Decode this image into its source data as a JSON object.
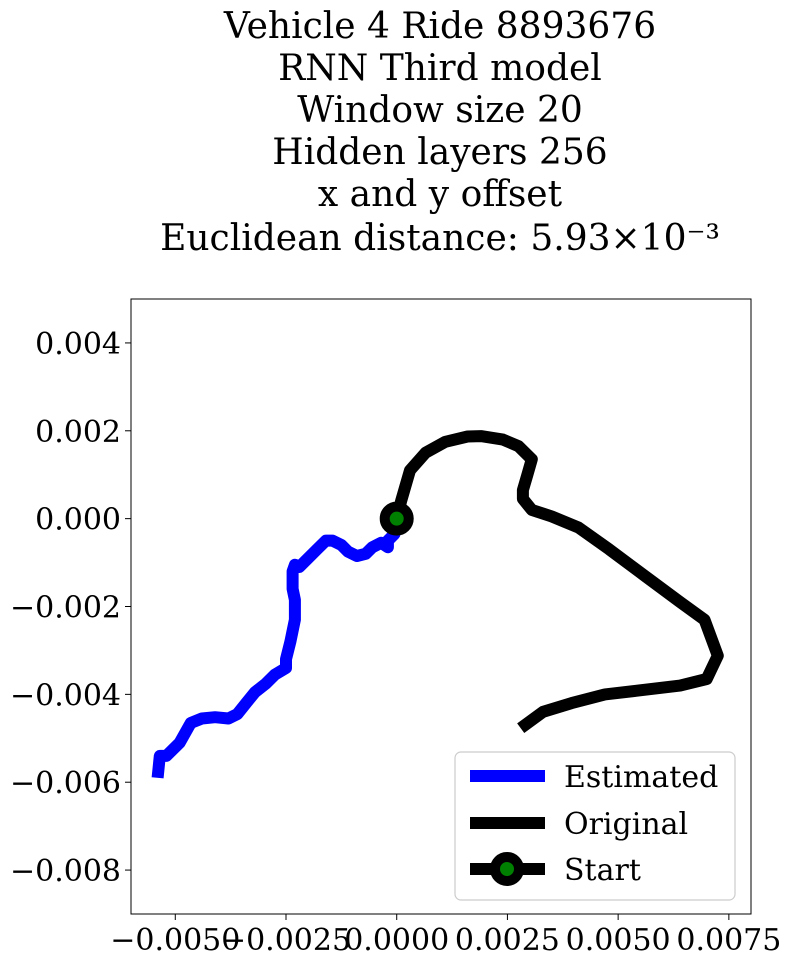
{
  "chart_data": {
    "type": "line",
    "title_lines": [
      "Vehicle 4 Ride 8893676",
      "RNN Third model",
      "Window size 20",
      "Hidden layers 256",
      "x and y offset",
      "Euclidean distance: 5.93×10⁻³"
    ],
    "xlim": [
      -0.006,
      0.008
    ],
    "ylim": [
      -0.009,
      0.005
    ],
    "xticks": [
      -0.005,
      -0.0025,
      0.0,
      0.0025,
      0.005,
      0.0075
    ],
    "xtick_labels": [
      "−0.0050",
      "−0.0025",
      "0.0000",
      "0.0025",
      "0.0050",
      "0.0075"
    ],
    "yticks": [
      0.004,
      0.002,
      0.0,
      -0.002,
      -0.004,
      -0.006,
      -0.008
    ],
    "ytick_labels": [
      "0.004",
      "0.002",
      "0.000",
      "−0.002",
      "−0.004",
      "−0.006",
      "−0.008"
    ],
    "grid": false,
    "legend_position": "bottom-right",
    "series": [
      {
        "name": "Estimated",
        "color": "#0000ff",
        "points": [
          [
            -0.0054,
            -0.0059
          ],
          [
            -0.00535,
            -0.0054
          ],
          [
            -0.0052,
            -0.0054
          ],
          [
            -0.0049,
            -0.0051
          ],
          [
            -0.00465,
            -0.00465
          ],
          [
            -0.0044,
            -0.00455
          ],
          [
            -0.0041,
            -0.00452
          ],
          [
            -0.0038,
            -0.00455
          ],
          [
            -0.0036,
            -0.00445
          ],
          [
            -0.0034,
            -0.0042
          ],
          [
            -0.0032,
            -0.00395
          ],
          [
            -0.00295,
            -0.00375
          ],
          [
            -0.00275,
            -0.00355
          ],
          [
            -0.0025,
            -0.0034
          ],
          [
            -0.0025,
            -0.0032
          ],
          [
            -0.0024,
            -0.0028
          ],
          [
            -0.0023,
            -0.0023
          ],
          [
            -0.0023,
            -0.00185
          ],
          [
            -0.00235,
            -0.0016
          ],
          [
            -0.00235,
            -0.0012
          ],
          [
            -0.0023,
            -0.00105
          ],
          [
            -0.0022,
            -0.0011
          ],
          [
            -0.002,
            -0.0009
          ],
          [
            -0.0018,
            -0.0007
          ],
          [
            -0.0016,
            -0.0005
          ],
          [
            -0.00145,
            -0.0005
          ],
          [
            -0.00125,
            -0.0006
          ],
          [
            -0.0011,
            -0.00075
          ],
          [
            -0.0009,
            -0.00085
          ],
          [
            -0.0007,
            -0.0008
          ],
          [
            -0.00055,
            -0.00065
          ],
          [
            -0.00035,
            -0.00055
          ],
          [
            -0.0002,
            -0.00065
          ],
          [
            -0.0002,
            -0.0005
          ],
          [
            -5e-05,
            -0.00035
          ],
          [
            0.0,
            0.0
          ]
        ]
      },
      {
        "name": "Original",
        "color": "#000000",
        "points": [
          [
            0.0,
            0.0
          ],
          [
            0.0001,
            0.0004
          ],
          [
            0.0003,
            0.0011
          ],
          [
            0.00065,
            0.0015
          ],
          [
            0.0011,
            0.00175
          ],
          [
            0.0016,
            0.00187
          ],
          [
            0.0019,
            0.00188
          ],
          [
            0.0024,
            0.0018
          ],
          [
            0.00275,
            0.00165
          ],
          [
            0.00305,
            0.00135
          ],
          [
            0.00295,
            0.001
          ],
          [
            0.00285,
            0.00065
          ],
          [
            0.00285,
            0.00045
          ],
          [
            0.00305,
            0.0002
          ],
          [
            0.0035,
            5e-05
          ],
          [
            0.0041,
            -0.0002
          ],
          [
            0.0048,
            -0.0007
          ],
          [
            0.0056,
            -0.0013
          ],
          [
            0.0064,
            -0.0019
          ],
          [
            0.00695,
            -0.0023
          ],
          [
            0.00725,
            -0.00312
          ],
          [
            0.007,
            -0.00365
          ],
          [
            0.0064,
            -0.0038
          ],
          [
            0.0054,
            -0.00392
          ],
          [
            0.0047,
            -0.004
          ],
          [
            0.00395,
            -0.0042
          ],
          [
            0.0033,
            -0.0044
          ],
          [
            0.0028,
            -0.00477
          ]
        ]
      }
    ],
    "start_marker": {
      "name": "Start",
      "x": 0.0,
      "y": 0.0,
      "edge_color": "#000000",
      "face_color": "#008000"
    }
  }
}
